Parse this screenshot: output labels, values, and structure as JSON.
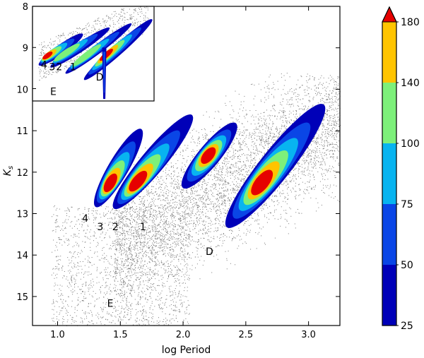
{
  "chart_data": {
    "type": "contour",
    "xlabel": "log Period",
    "ylabel": "K",
    "ylabel_sub": "s",
    "xlim": [
      0.8,
      3.25
    ],
    "ylim": [
      15.7,
      8.0
    ],
    "y_inverted": true,
    "xticks": [
      {
        "value": 1.0,
        "label": "1.0"
      },
      {
        "value": 1.5,
        "label": "1.5"
      },
      {
        "value": 2.0,
        "label": "2.0"
      },
      {
        "value": 2.5,
        "label": "2.5"
      },
      {
        "value": 3.0,
        "label": "3.0"
      }
    ],
    "yticks": [
      {
        "value": 8,
        "label": "8"
      },
      {
        "value": 9,
        "label": "9"
      },
      {
        "value": 10,
        "label": "10"
      },
      {
        "value": 11,
        "label": "11"
      },
      {
        "value": 12,
        "label": "12"
      },
      {
        "value": 13,
        "label": "13"
      },
      {
        "value": 14,
        "label": "14"
      },
      {
        "value": 15,
        "label": "15"
      }
    ],
    "colorbar": {
      "levels": [
        25,
        50,
        75,
        100,
        140,
        180
      ],
      "labels": [
        "25",
        "50",
        "75",
        "100",
        "140",
        "180"
      ],
      "colors": [
        "#0000b8",
        "#0a46e6",
        "#08b4f0",
        "#7df07a",
        "#ffc400",
        "#e60000"
      ],
      "extend": "max"
    },
    "sequence_labels": [
      {
        "text": "4",
        "x": 1.22,
        "y": 13.2
      },
      {
        "text": "3",
        "x": 1.34,
        "y": 13.4
      },
      {
        "text": "2",
        "x": 1.46,
        "y": 13.4
      },
      {
        "text": "1",
        "x": 1.68,
        "y": 13.4
      },
      {
        "text": "D",
        "x": 2.21,
        "y": 14.0
      },
      {
        "text": "E",
        "x": 1.42,
        "y": 15.25
      }
    ],
    "sequence_ridges": [
      {
        "name": "4",
        "from": [
          1.32,
          12.75
        ],
        "to": [
          1.65,
          11.05
        ],
        "peak": [
          1.41,
          12.32
        ],
        "w_max": 0.45
      },
      {
        "name": "3",
        "from": [
          1.47,
          12.8
        ],
        "to": [
          2.05,
          10.7
        ],
        "peak": [
          1.62,
          12.3
        ],
        "w_max": 0.55
      },
      {
        "name": "2",
        "from": [
          2.02,
          12.3
        ],
        "to": [
          2.4,
          10.9
        ],
        "peak": [
          2.2,
          11.6
        ],
        "w_max": 0.5
      },
      {
        "name": "1",
        "from": [
          2.37,
          13.25
        ],
        "to": [
          3.1,
          10.45
        ],
        "peak": [
          2.61,
          12.32
        ],
        "w_max": 0.75
      }
    ],
    "inset": {
      "xlim": [
        0.9,
        1.95
      ],
      "ylim": [
        10.3,
        8.0
      ],
      "yticks": [
        {
          "value": 8,
          "label": "8"
        },
        {
          "value": 9,
          "label": "9"
        },
        {
          "value": 10,
          "label": "10"
        }
      ],
      "labels": [
        {
          "text": "4",
          "x": 1.0,
          "y": 9.5
        },
        {
          "text": "3",
          "x": 1.07,
          "y": 9.55
        },
        {
          "text": "2",
          "x": 1.13,
          "y": 9.55
        },
        {
          "text": "1",
          "x": 1.25,
          "y": 9.55
        },
        {
          "text": "D",
          "x": 1.48,
          "y": 9.8
        },
        {
          "text": "E",
          "x": 1.08,
          "y": 10.15
        }
      ]
    }
  }
}
